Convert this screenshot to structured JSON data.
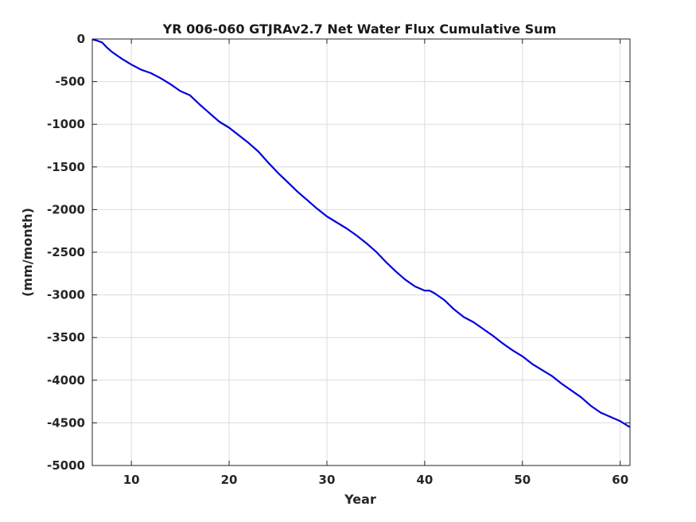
{
  "chart_data": {
    "type": "line",
    "title": "YR 006-060 GTJRAv2.7 Net Water Flux Cumulative Sum",
    "xlabel": "Year",
    "ylabel": "(mm/month)",
    "xlim": [
      6,
      61
    ],
    "ylim": [
      -5000,
      0
    ],
    "xticks": [
      10,
      20,
      30,
      40,
      50,
      60
    ],
    "yticks": [
      0,
      -500,
      -1000,
      -1500,
      -2000,
      -2500,
      -3000,
      -3500,
      -4000,
      -4500,
      -5000
    ],
    "grid": true,
    "series": [
      {
        "color": "#0000dd",
        "x": [
          6,
          6.5,
          7,
          7.5,
          8,
          9,
          10,
          11,
          12,
          13,
          14,
          15,
          16,
          17,
          18,
          19,
          20,
          21,
          22,
          23,
          24,
          25,
          26,
          27,
          28,
          29,
          30,
          31,
          32,
          33,
          34,
          35,
          36,
          37,
          38,
          39,
          40,
          40.5,
          41,
          42,
          43,
          44,
          45,
          46,
          47,
          48,
          49,
          50,
          51,
          52,
          53,
          54,
          55,
          56,
          57,
          58,
          59,
          60,
          61
        ],
        "y": [
          -5,
          -20,
          -40,
          -100,
          -150,
          -230,
          -300,
          -360,
          -400,
          -460,
          -530,
          -610,
          -660,
          -770,
          -870,
          -970,
          -1040,
          -1130,
          -1220,
          -1320,
          -1450,
          -1570,
          -1680,
          -1790,
          -1890,
          -1990,
          -2080,
          -2150,
          -2220,
          -2300,
          -2390,
          -2490,
          -2610,
          -2720,
          -2820,
          -2900,
          -2950,
          -2950,
          -2980,
          -3060,
          -3170,
          -3260,
          -3320,
          -3400,
          -3480,
          -3570,
          -3650,
          -3720,
          -3810,
          -3880,
          -3950,
          -4040,
          -4120,
          -4200,
          -4300,
          -4380,
          -4430,
          -4480,
          -4550
        ]
      }
    ]
  }
}
